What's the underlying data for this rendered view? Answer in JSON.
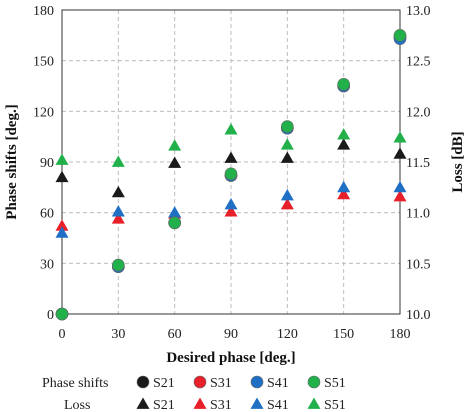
{
  "chart_data": {
    "type": "scatter",
    "title": "",
    "xlabel": "Desired phase [deg.]",
    "ylabel_left": "Phase shifts [deg.]",
    "ylabel_right": "Loss [dB]",
    "x_ticks": [
      0,
      30,
      60,
      90,
      120,
      150,
      180
    ],
    "y_left_ticks": [
      0,
      30,
      60,
      90,
      120,
      150,
      180
    ],
    "y_right_ticks": [
      "10.0",
      "10.5",
      "11.0",
      "11.5",
      "12.0",
      "12.5",
      "13.0"
    ],
    "xlim": [
      0,
      180
    ],
    "ylim_left": [
      0,
      180
    ],
    "ylim_right": [
      10.0,
      13.0
    ],
    "grid": true,
    "legend_position": "bottom",
    "legend_rows": [
      {
        "label": "Phase shifts",
        "marker": "circle"
      },
      {
        "label": "Loss",
        "marker": "triangle"
      }
    ],
    "series_names": [
      "S21",
      "S31",
      "S41",
      "S51"
    ],
    "colors": {
      "S21": "#1a1a1a",
      "S31": "#e8202a",
      "S41": "#1f6fc5",
      "S51": "#22b04b"
    },
    "phase_series": [
      {
        "name": "S21",
        "axis": "left",
        "x": [
          0,
          30,
          60,
          90,
          120,
          150,
          180
        ],
        "y": [
          0,
          28,
          54,
          82,
          110,
          135,
          164
        ]
      },
      {
        "name": "S31",
        "axis": "left",
        "x": [
          0,
          30,
          60,
          90,
          120,
          150,
          180
        ],
        "y": [
          0,
          28,
          54,
          82,
          110,
          135,
          164
        ]
      },
      {
        "name": "S41",
        "axis": "left",
        "x": [
          0,
          30,
          60,
          90,
          120,
          150,
          180
        ],
        "y": [
          0,
          28,
          54,
          82,
          110,
          135,
          163
        ]
      },
      {
        "name": "S51",
        "axis": "left",
        "x": [
          0,
          30,
          60,
          90,
          120,
          150,
          180
        ],
        "y": [
          0,
          29,
          54,
          83,
          111,
          136,
          165
        ]
      }
    ],
    "loss_series": [
      {
        "name": "S21",
        "axis": "right",
        "x": [
          0,
          30,
          60,
          90,
          120,
          150,
          180
        ],
        "y": [
          11.35,
          11.2,
          11.49,
          11.54,
          11.54,
          11.67,
          11.58
        ]
      },
      {
        "name": "S31",
        "axis": "right",
        "x": [
          0,
          30,
          60,
          90,
          120,
          150,
          180
        ],
        "y": [
          10.87,
          10.94,
          10.99,
          11.01,
          11.08,
          11.18,
          11.16
        ]
      },
      {
        "name": "S41",
        "axis": "right",
        "x": [
          0,
          30,
          60,
          90,
          120,
          150,
          180
        ],
        "y": [
          10.8,
          11.01,
          11.0,
          11.08,
          11.17,
          11.25,
          11.25
        ]
      },
      {
        "name": "S51",
        "axis": "right",
        "x": [
          0,
          30,
          60,
          90,
          120,
          150,
          180
        ],
        "y": [
          11.52,
          11.5,
          11.66,
          11.82,
          11.67,
          11.77,
          11.74
        ]
      }
    ]
  }
}
